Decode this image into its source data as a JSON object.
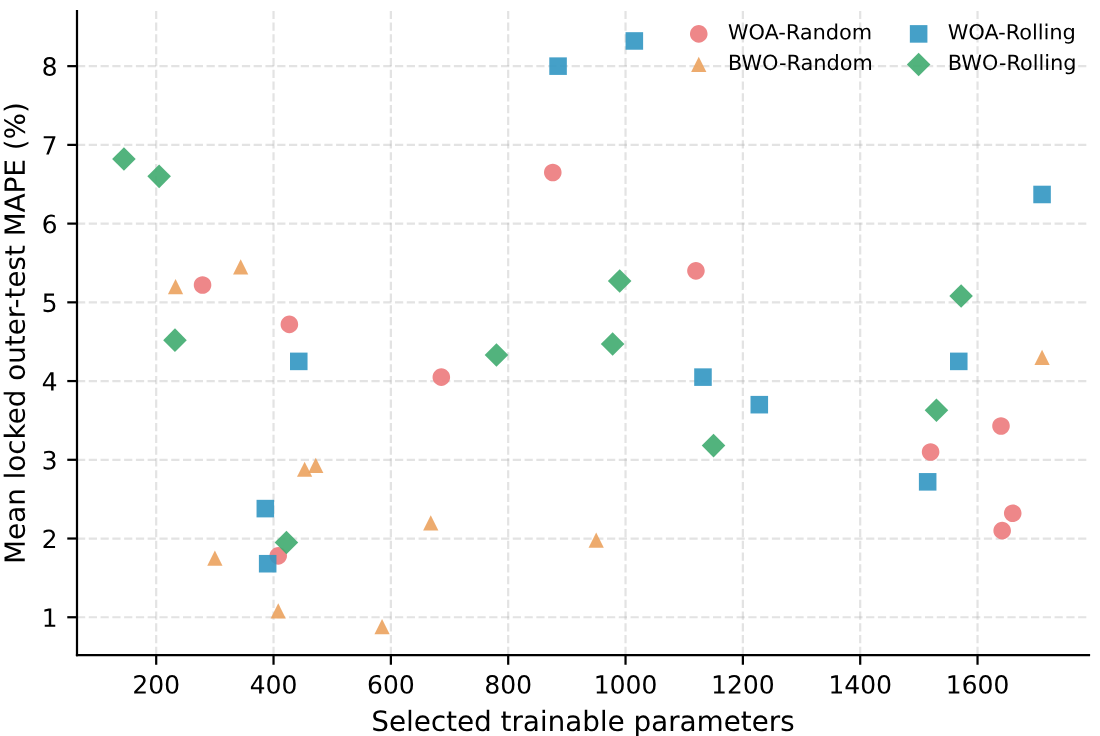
{
  "chart_data": {
    "type": "scatter",
    "xlabel": "Selected trainable parameters",
    "ylabel": "Mean locked outer-test MAPE (%)",
    "xlim": [
      65,
      1790
    ],
    "ylim": [
      0.52,
      8.7
    ],
    "xticks": [
      200,
      400,
      600,
      800,
      1000,
      1200,
      1400,
      1600
    ],
    "yticks": [
      1,
      2,
      3,
      4,
      5,
      6,
      7,
      8
    ],
    "grid": true,
    "legend": "top right",
    "series": [
      {
        "name": "WOA-Random",
        "color": "#ec7a7c",
        "marker": "circle",
        "x": [
          279,
          427,
          408,
          686,
          876,
          1120,
          1520,
          1640,
          1642,
          1660
        ],
        "values": [
          5.22,
          4.72,
          1.78,
          4.05,
          6.65,
          5.4,
          3.1,
          3.43,
          2.1,
          2.32
        ]
      },
      {
        "name": "BWO-Random",
        "color": "#eba25e",
        "marker": "triangle",
        "x": [
          233,
          344,
          300,
          408,
          453,
          472,
          585,
          668,
          950,
          1710
        ],
        "values": [
          5.2,
          5.45,
          1.75,
          1.08,
          2.88,
          2.93,
          0.88,
          2.2,
          1.98,
          4.3
        ]
      },
      {
        "name": "WOA-Rolling",
        "color": "#3196c2",
        "marker": "square",
        "x": [
          885,
          1015,
          443,
          386,
          390,
          1132,
          1228,
          1515,
          1568,
          1710
        ],
        "values": [
          8.0,
          8.32,
          4.25,
          2.38,
          1.68,
          4.05,
          3.7,
          2.72,
          4.25,
          6.37
        ]
      },
      {
        "name": "BWO-Rolling",
        "color": "#3fab6f",
        "marker": "diamond",
        "x": [
          145,
          205,
          232,
          422,
          780,
          990,
          978,
          1150,
          1530,
          1572
        ],
        "values": [
          6.82,
          6.6,
          4.52,
          1.95,
          4.33,
          5.27,
          4.47,
          3.18,
          3.63,
          5.08
        ]
      }
    ]
  }
}
